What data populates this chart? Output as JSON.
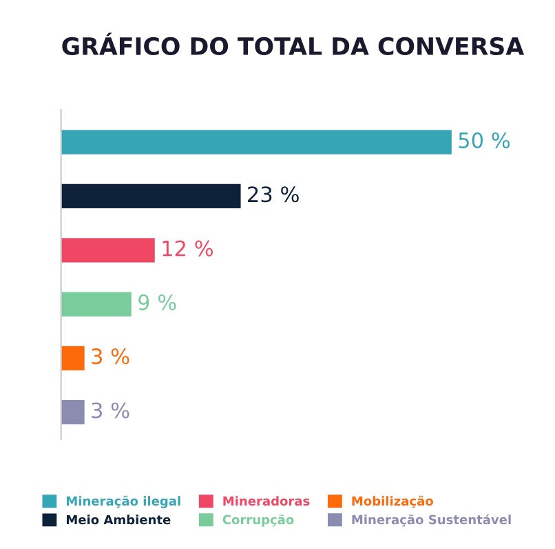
{
  "chart_data": {
    "type": "bar",
    "orientation": "horizontal",
    "stacked": true,
    "title": "GRÁFICO DO TOTAL DA CONVERSA",
    "categories": [
      null,
      null,
      null,
      null,
      null,
      null
    ],
    "series": [
      {
        "name": "Mineração ilegal",
        "color": "#36a5b5",
        "values": [
          50,
          null,
          null,
          null,
          null,
          null
        ],
        "value_labels": [
          "50 %",
          null,
          null,
          null,
          null,
          null
        ]
      },
      {
        "name": "Meio Ambiente",
        "color": "#0d2238",
        "values": [
          null,
          23,
          null,
          null,
          null,
          null
        ],
        "value_labels": [
          null,
          "23 %",
          null,
          null,
          null,
          null
        ]
      },
      {
        "name": "Mineradoras",
        "color": "#ef4764",
        "values": [
          null,
          null,
          12,
          null,
          null,
          null
        ],
        "value_labels": [
          null,
          null,
          "12 %",
          null,
          null,
          null
        ]
      },
      {
        "name": "Corrupção",
        "color": "#79cc9b",
        "values": [
          null,
          null,
          null,
          9,
          null,
          null
        ],
        "value_labels": [
          null,
          null,
          null,
          "9 %",
          null,
          null
        ]
      },
      {
        "name": "Mobilização",
        "color": "#fd6a0c",
        "values": [
          null,
          null,
          null,
          null,
          3,
          null
        ],
        "value_labels": [
          null,
          null,
          null,
          null,
          "3 %",
          null
        ]
      },
      {
        "name": "Mineração Sustentável",
        "color": "#8c8cb0",
        "values": [
          null,
          null,
          null,
          null,
          null,
          3
        ],
        "value_labels": [
          null,
          null,
          null,
          null,
          null,
          "3 %"
        ]
      }
    ],
    "legend": "bottom"
  }
}
